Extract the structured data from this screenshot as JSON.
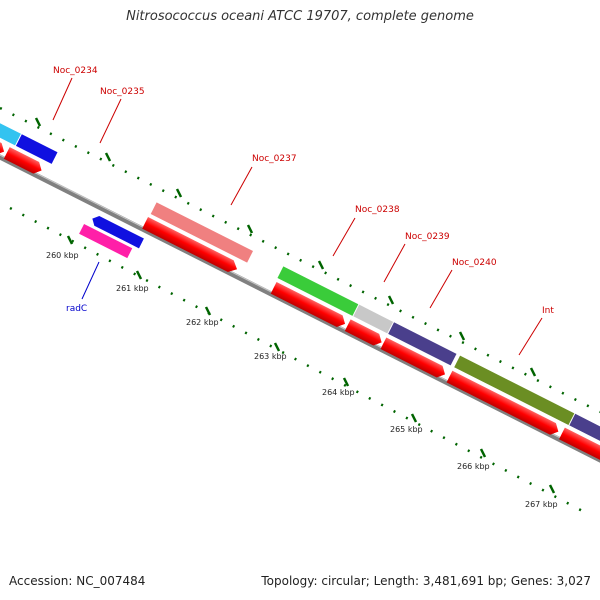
{
  "title": "Nitrosococcus oceani ATCC 19707, complete genome",
  "footer": {
    "accession": "Accession: NC_007484",
    "summary": "Topology: circular; Length: 3,481,691 bp; Genes: 3,027"
  },
  "gene_labels": {
    "noc0234": "Noc_0234",
    "noc0235": "Noc_0235",
    "noc0237": "Noc_0237",
    "noc0238": "Noc_0238",
    "noc0239": "Noc_0239",
    "noc0240": "Noc_0240",
    "int": "Int",
    "radc": "radC"
  },
  "scale_labels": {
    "k260": "260 kbp",
    "k261": "261 kbp",
    "k262": "262 kbp",
    "k263": "263 kbp",
    "k264": "264 kbp",
    "k265": "265 kbp",
    "k266": "266 kbp",
    "k267": "267 kbp"
  },
  "colors": {
    "cds_red": "#ff0000",
    "backbone": "#808080",
    "tick_green": "#006400",
    "olive": "#6b8e23",
    "sky": "#33c3f0",
    "blue": "#1010e0",
    "salmon": "#f08080",
    "green": "#3acc3a",
    "gray": "#c8c8c8",
    "slate": "#4a3f8c",
    "magenta": "#ff1fa8",
    "label_red": "#cc0000",
    "label_blue": "#0000cc"
  }
}
